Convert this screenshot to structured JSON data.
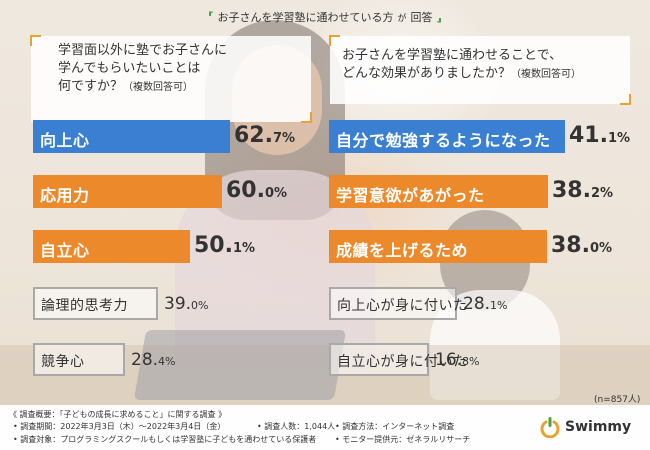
{
  "header": {
    "prefix": "お子さんを学習塾に通わせている方",
    "connector": "が",
    "suffix": "回答"
  },
  "left_question": {
    "line1": "学習面以外に塾でお子さんに",
    "line2": "学んでもらいたいことは",
    "line3": "何ですか？",
    "note": "（複数回答可）"
  },
  "right_question": {
    "line1": "お子さんを学習塾に通わせることで、",
    "line2": "どんな効果がありましたか？",
    "note": "（複数回答可）"
  },
  "chart_data": [
    {
      "type": "bar",
      "title": "学習面以外に塾でお子さんに学んでもらいたいことは何ですか？（複数回答可）",
      "categories": [
        "向上心",
        "応用力",
        "自立心",
        "論理的思考力",
        "競争心"
      ],
      "values": [
        62.7,
        60.0,
        50.1,
        39.0,
        28.4
      ],
      "value_labels": [
        [
          "62.",
          "7",
          "%"
        ],
        [
          "60.",
          "0",
          "%"
        ],
        [
          "50.",
          "1",
          "%"
        ],
        [
          "39.",
          "0",
          "%"
        ],
        [
          "28.",
          "4",
          "%"
        ]
      ],
      "unit": "%"
    },
    {
      "type": "bar",
      "title": "お子さんを学習塾に通わせることで、どんな効果がありましたか？（複数回答可）",
      "categories": [
        "自分で勉強するようになった",
        "学習意欲があがった",
        "成績を上げるため",
        "向上心が身に付いた",
        "自立心が身に付いた"
      ],
      "values": [
        41.1,
        38.2,
        38.0,
        28.1,
        16.8
      ],
      "value_labels": [
        [
          "41.",
          "1",
          "%"
        ],
        [
          "38.",
          "2",
          "%"
        ],
        [
          "38.",
          "0",
          "%"
        ],
        [
          "28.",
          "1",
          "%"
        ],
        [
          "16.",
          "8",
          "%"
        ]
      ],
      "unit": "%"
    }
  ],
  "sample_size": "(n=857人)",
  "footer": {
    "overview": "《 調査概要：「子どもの成長に求めること」に関する調査 》",
    "period": "• 調査期間：2022年3月3日（木）〜2022年3月4日（金）",
    "count": "• 調査人数：1,044人",
    "method": "• 調査方法：インターネット調査",
    "target": "• 調査対象：プログラミングスクールもしくは学習塾に子どもを通わせている保護者",
    "provider": "• モニター提供元：ゼネラルリサーチ"
  },
  "brand": {
    "name": "Swimmy"
  },
  "colors": {
    "blue": "#3a7fd1",
    "orange": "#ec8a2b",
    "gray_border": "#a9a9a9",
    "green": "#4aa046",
    "accent_frame": "#e8a134"
  }
}
